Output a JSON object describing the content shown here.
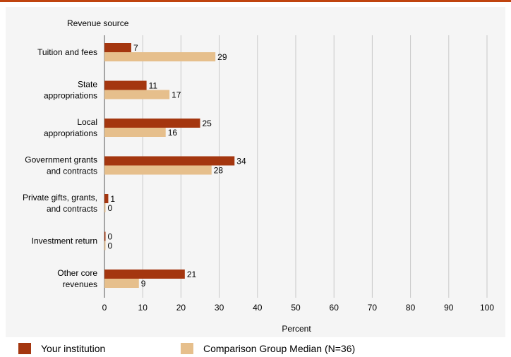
{
  "chart_data": {
    "type": "bar",
    "orientation": "horizontal",
    "category_axis_title": "Revenue source",
    "xlabel": "Percent",
    "xlim": [
      0,
      100
    ],
    "xticks": [
      0,
      10,
      20,
      30,
      40,
      50,
      60,
      70,
      80,
      90,
      100
    ],
    "grid": true,
    "legend_position": "bottom",
    "categories": [
      [
        "Tuition and fees"
      ],
      [
        "State",
        "appropriations"
      ],
      [
        "Local",
        "appropriations"
      ],
      [
        "Government grants",
        "and contracts"
      ],
      [
        "Private gifts, grants,",
        "and contracts"
      ],
      [
        "Investment return"
      ],
      [
        "Other core",
        "revenues"
      ]
    ],
    "series": [
      {
        "name": "Your institution",
        "color": "#a4360f",
        "values": [
          7,
          11,
          25,
          34,
          1,
          0,
          21
        ]
      },
      {
        "name": "Comparison Group Median (N=36)",
        "color": "#e6bf8c",
        "values": [
          29,
          17,
          16,
          28,
          0,
          0,
          9
        ]
      }
    ]
  }
}
